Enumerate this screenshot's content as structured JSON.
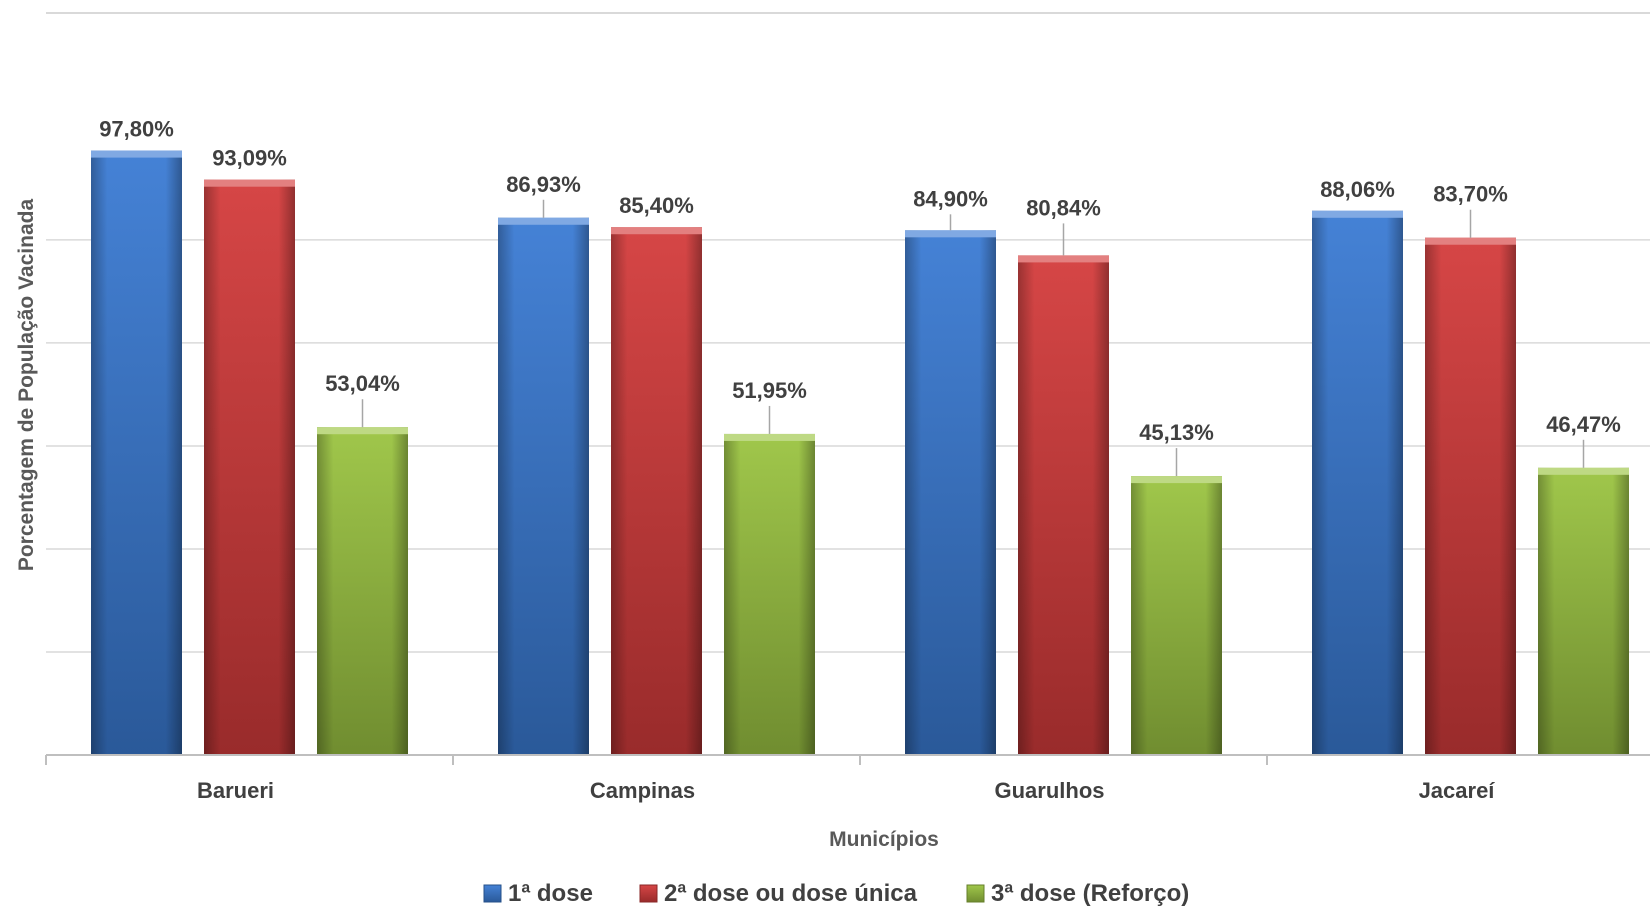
{
  "chart_data": {
    "type": "bar",
    "title": "",
    "xlabel": "Municípios",
    "ylabel": "Porcentagem de População Vacinada",
    "ylim": [
      0,
      100
    ],
    "y_grid_step": 16.67,
    "grid": true,
    "legend_position": "bottom",
    "categories": [
      "Barueri",
      "Campinas",
      "Guarulhos",
      "Jacareí"
    ],
    "series": [
      {
        "name": "1ª dose",
        "color": "#3b7bd4",
        "values": [
          97.8,
          86.93,
          84.9,
          88.06
        ],
        "labels": [
          "97,80%",
          "86,93%",
          "84,90%",
          "88,06%"
        ]
      },
      {
        "name": "2ª dose ou dose única",
        "color": "#d43c3c",
        "values": [
          93.09,
          85.4,
          80.84,
          83.7
        ],
        "labels": [
          "93,09%",
          "85,40%",
          "80,84%",
          "83,70%"
        ]
      },
      {
        "name": "3ª dose (Reforço)",
        "color": "#9bc442",
        "values": [
          53.04,
          51.95,
          45.13,
          46.47
        ],
        "labels": [
          "53,04%",
          "51,95%",
          "45,13%",
          "46,47%"
        ]
      }
    ]
  }
}
